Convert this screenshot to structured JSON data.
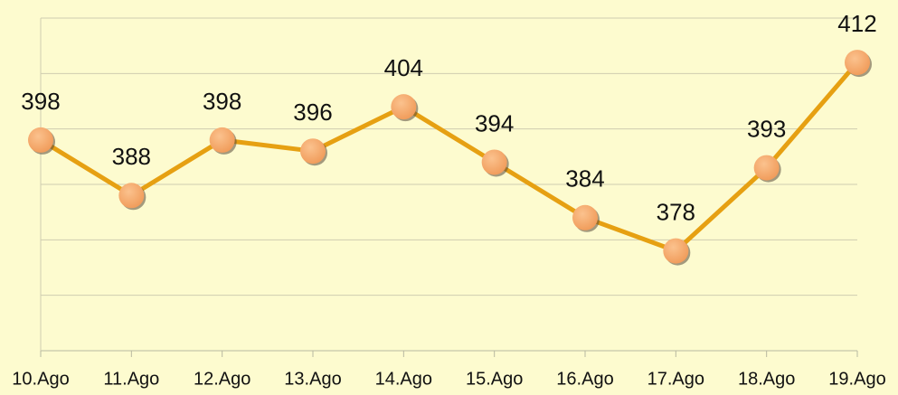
{
  "chart_data": {
    "type": "line",
    "categories": [
      "10.Ago",
      "11.Ago",
      "12.Ago",
      "13.Ago",
      "14.Ago",
      "15.Ago",
      "16.Ago",
      "17.Ago",
      "18.Ago",
      "19.Ago"
    ],
    "series": [
      {
        "color": "#e6a012",
        "values": [
          398,
          388,
          398,
          396,
          404,
          394,
          384,
          378,
          393,
          412
        ]
      }
    ],
    "ylim": [
      360,
      420
    ],
    "yticks": [
      360,
      370,
      380,
      390,
      400,
      410,
      420
    ],
    "grid": true
  }
}
